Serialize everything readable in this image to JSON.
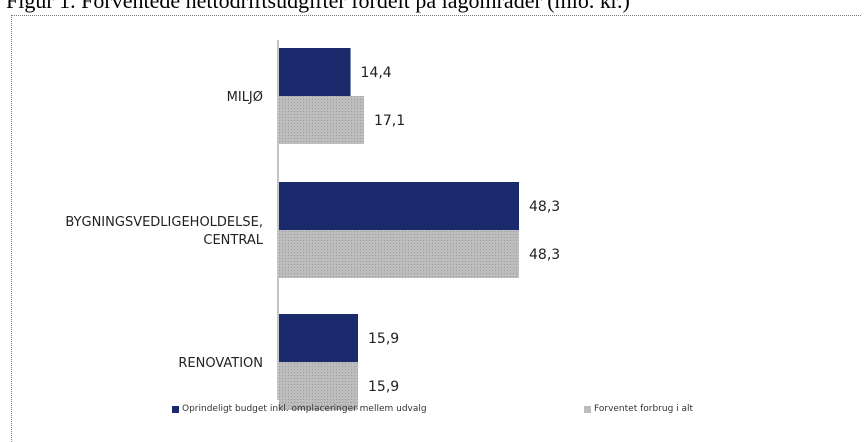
{
  "title": "Figur 1. Forventede nettodriftsudgifter fordelt på lagområder (mio. kr.)",
  "colors": {
    "budget": "#1a2a6c",
    "forbrug": "#bdbdbd",
    "axis": "#8a8a8a",
    "text": "#222222"
  },
  "chart_data": {
    "type": "bar",
    "orientation": "horizontal",
    "title": "Figur 1. Forventede nettodriftsudgifter fordelt på lagområder (mio. kr.)",
    "categories": [
      [
        "MILJØ"
      ],
      [
        "BYGNINGSVEDLIGEHOLDELSE,",
        "CENTRAL"
      ],
      [
        "RENOVATION"
      ]
    ],
    "series": [
      {
        "name": "Oprindeligt budget inkl. omplaceringer mellem udvalg",
        "color": "#1a2a6c",
        "values": [
          14.4,
          48.3,
          15.9
        ],
        "labels": [
          "14,4",
          "48,3",
          "15,9"
        ]
      },
      {
        "name": "Forventet forbrug i alt",
        "color": "#bdbdbd",
        "values": [
          17.1,
          48.3,
          15.9
        ],
        "labels": [
          "17,1",
          "48,3",
          "15,9"
        ]
      }
    ],
    "xlim": [
      0,
      55
    ],
    "grid": false,
    "legend_position": "bottom"
  }
}
